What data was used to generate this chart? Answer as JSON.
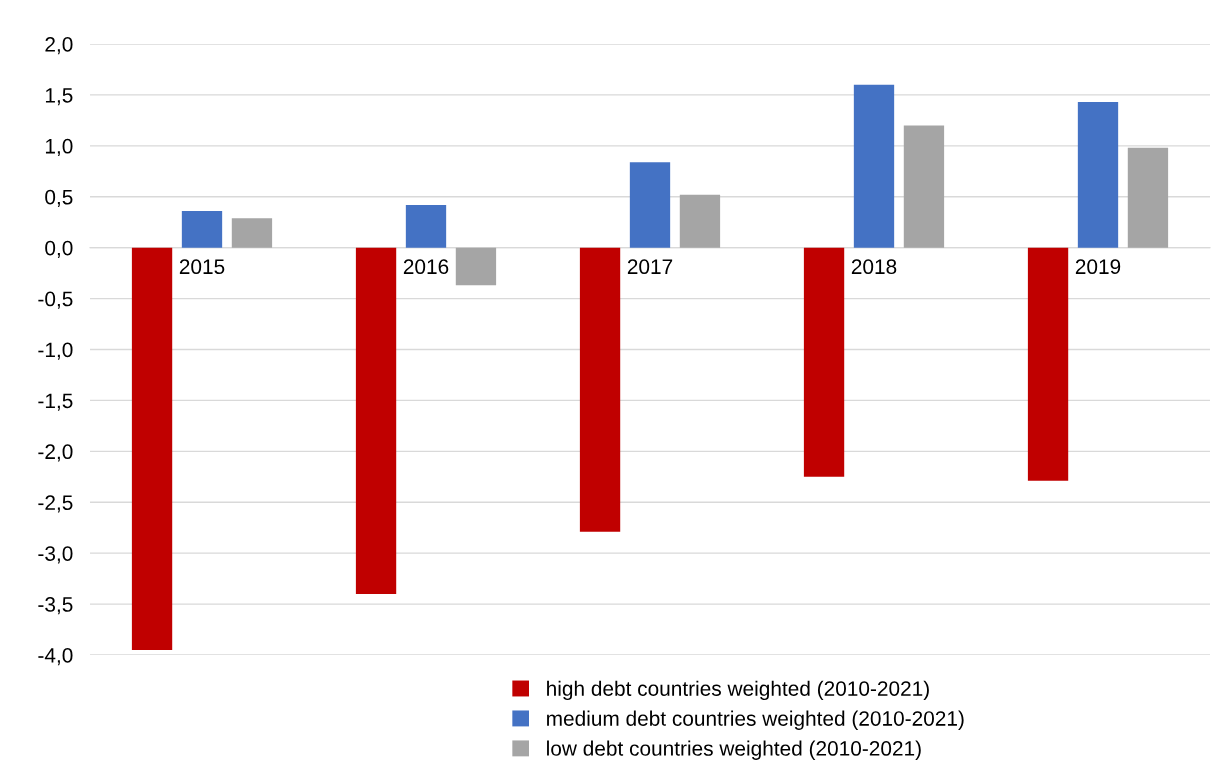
{
  "chart_data": {
    "type": "bar",
    "categories": [
      "2015",
      "2016",
      "2017",
      "2018",
      "2019"
    ],
    "series": [
      {
        "name": "high debt countries weighted (2010-2021)",
        "color": "#c00000",
        "values": [
          -3.95,
          -3.4,
          -2.79,
          -2.25,
          -2.29
        ]
      },
      {
        "name": "medium debt countries weighted (2010-2021)",
        "color": "#4472c4",
        "values": [
          0.36,
          0.42,
          0.84,
          1.6,
          1.43
        ]
      },
      {
        "name": "low debt countries weighted (2010-2021)",
        "color": "#a5a5a5",
        "values": [
          0.29,
          -0.37,
          0.52,
          1.2,
          0.98
        ]
      }
    ],
    "ylim": [
      -4,
      2
    ],
    "yticks": [
      {
        "value": -4,
        "label": "-4,0"
      },
      {
        "value": -3.5,
        "label": "-3,5"
      },
      {
        "value": -3,
        "label": "-3,0"
      },
      {
        "value": -2.5,
        "label": "-2,5"
      },
      {
        "value": -2,
        "label": "-2,0"
      },
      {
        "value": -1.5,
        "label": "-1,5"
      },
      {
        "value": -1,
        "label": "-1,0"
      },
      {
        "value": -0.5,
        "label": "-0,5"
      },
      {
        "value": 0,
        "label": "0,0"
      },
      {
        "value": 0.5,
        "label": "0,5"
      },
      {
        "value": 1,
        "label": "1,0"
      },
      {
        "value": 1.5,
        "label": "1,5"
      },
      {
        "value": 2,
        "label": "2,0"
      }
    ],
    "grid": "y",
    "legend": "bottom"
  }
}
